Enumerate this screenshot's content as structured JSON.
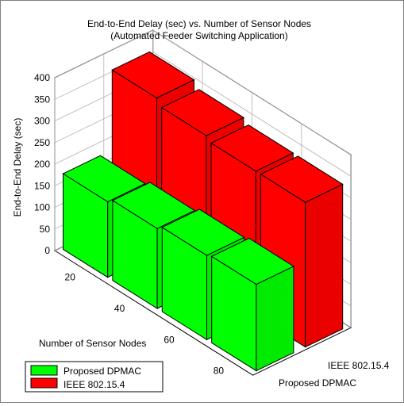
{
  "chart_data": {
    "type": "bar",
    "title": "End-to-End Delay (sec) vs. Number of Sensor Nodes",
    "subtitle": "(Automated Feeder Switching Application)",
    "xlabel": "Number of Sensor Nodes",
    "ylabel": "End-to-End Delay (sec)",
    "zlim": [
      0,
      400
    ],
    "z_ticks": [
      "0",
      "50",
      "100",
      "150",
      "200",
      "250",
      "300",
      "350",
      "400"
    ],
    "categories": [
      "20",
      "40",
      "60",
      "80"
    ],
    "series": [
      {
        "name": "Proposed DPMAC",
        "color": "#00ff00",
        "values": [
          175,
          185,
          195,
          200
        ]
      },
      {
        "name": "IEEE 802.15.4",
        "color": "#ff0000",
        "values": [
          360,
          345,
          335,
          335
        ]
      }
    ],
    "depth_labels": [
      "Proposed DPMAC",
      "IEEE 802.15.4"
    ],
    "legend_position": "bottom-left",
    "grid": true
  }
}
